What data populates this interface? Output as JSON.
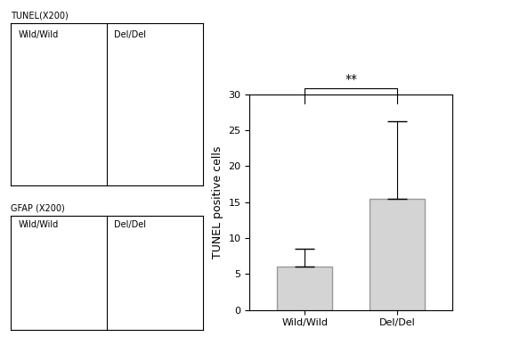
{
  "panels": [
    {
      "title": "TUNEL(X200)",
      "labels": [
        "Wild/Wild",
        "Del/Del"
      ]
    },
    {
      "title": "GFAP (X200)",
      "labels": [
        "Wild/Wild",
        "Del/Del"
      ]
    }
  ],
  "chart_data": {
    "type": "bar",
    "y_label": "TUNEL positive cells",
    "categories": [
      "Wild/Wild",
      "Del/Del"
    ],
    "values": [
      6,
      15.5
    ],
    "error": [
      2.5,
      10.8
    ],
    "color": "#d4d4d4",
    "ylim": [
      0,
      30
    ],
    "yticks": [
      0,
      5,
      10,
      15,
      20,
      25,
      30
    ],
    "significance": {
      "text": "**",
      "between": [
        "Wild/Wild",
        "Del/Del"
      ]
    }
  }
}
